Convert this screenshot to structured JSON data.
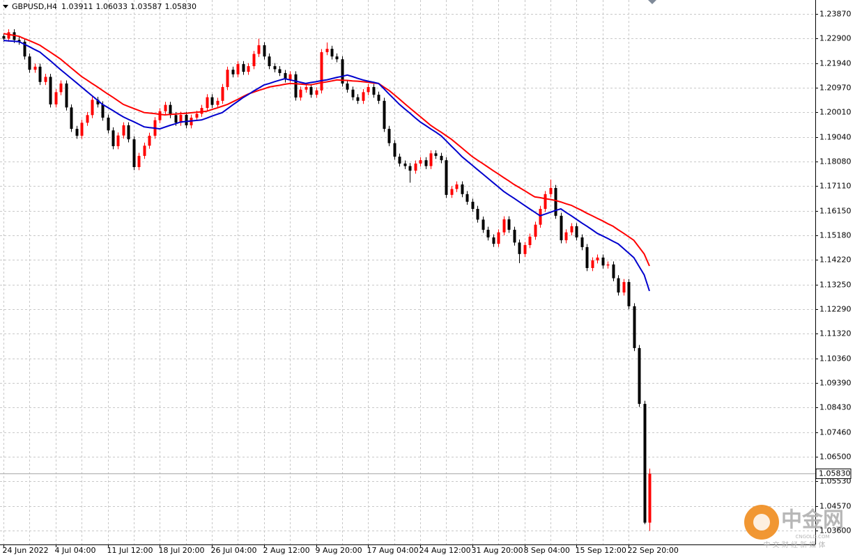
{
  "chart_data": {
    "type": "candlestick",
    "header": {
      "symbol": "GBPUSD,H4",
      "open": "1.03911",
      "high": "1.06033",
      "low": "1.03587",
      "close": "1.05830"
    },
    "categories": [
      "24 Jun 2022",
      null,
      null,
      null,
      null,
      null,
      null,
      null,
      null,
      null,
      "4 Jul 04:00",
      null,
      null,
      null,
      null,
      null,
      null,
      null,
      null,
      null,
      "11 Jul 12:00",
      null,
      null,
      null,
      null,
      null,
      null,
      null,
      null,
      null,
      "18 Jul 20:00",
      null,
      null,
      null,
      null,
      null,
      null,
      null,
      null,
      null,
      "26 Jul 04:00",
      null,
      null,
      null,
      null,
      null,
      null,
      null,
      null,
      null,
      "2 Aug 12:00",
      null,
      null,
      null,
      null,
      null,
      null,
      null,
      null,
      null,
      "9 Aug 20:00",
      null,
      null,
      null,
      null,
      null,
      null,
      null,
      null,
      null,
      "17 Aug 04:00",
      null,
      null,
      null,
      null,
      null,
      null,
      null,
      null,
      null,
      "24 Aug 12:00",
      null,
      null,
      null,
      null,
      null,
      null,
      null,
      null,
      null,
      "31 Aug 20:00",
      null,
      null,
      null,
      null,
      null,
      null,
      null,
      null,
      null,
      "8 Sep 04:00",
      null,
      null,
      null,
      null,
      null,
      null,
      null,
      null,
      null,
      "15 Sep 12:00",
      null,
      null,
      null,
      null,
      null,
      null,
      null,
      null,
      null,
      "22 Sep 20:00",
      null,
      null,
      null,
      null
    ],
    "open": [
      1.23,
      1.229,
      1.2315,
      1.2285,
      1.2278,
      1.222,
      1.2168,
      1.218,
      1.212,
      1.214,
      1.2032,
      1.208,
      1.2114,
      1.202,
      1.1936,
      1.1909,
      1.196,
      1.199,
      1.205,
      1.2032,
      1.198,
      1.193,
      1.1868,
      1.191,
      1.195,
      1.1895,
      1.1786,
      1.183,
      1.187,
      1.1909,
      1.197,
      1.2005,
      1.203,
      1.199,
      1.196,
      1.1991,
      1.195,
      1.198,
      1.1995,
      1.2018,
      1.206,
      1.203,
      1.2046,
      1.21,
      1.2168,
      1.215,
      1.219,
      1.216,
      1.2182,
      1.223,
      1.2264,
      1.222,
      1.2182,
      1.217,
      1.2155,
      1.213,
      1.215,
      1.2059,
      1.209,
      1.21,
      1.207,
      1.2087,
      1.2237,
      1.225,
      1.222,
      1.2209,
      1.2114,
      1.209,
      1.206,
      1.2046,
      1.208,
      1.21,
      1.207,
      1.2046,
      1.1936,
      1.188,
      1.1827,
      1.18,
      1.179,
      1.1772,
      1.18,
      1.1813,
      1.179,
      1.184,
      1.183,
      1.1813,
      1.1677,
      1.17,
      1.1718,
      1.168,
      1.165,
      1.1622,
      1.158,
      1.154,
      1.151,
      1.1485,
      1.153,
      1.1581,
      1.154,
      1.149,
      1.1445,
      1.148,
      1.1513,
      1.156,
      1.1622,
      1.168,
      1.1704,
      1.1595,
      1.1499,
      1.153,
      1.1554,
      1.151,
      1.1472,
      1.139,
      1.142,
      1.1431,
      1.14,
      1.1404,
      1.135,
      1.1294,
      1.1335,
      1.124,
      1.1076,
      1.0857,
      1.03911
    ],
    "high": [
      1.2312,
      1.2327,
      1.2327,
      1.2297,
      1.229,
      1.2232,
      1.2192,
      1.2192,
      1.2152,
      1.2152,
      1.2092,
      1.2126,
      1.2126,
      1.2032,
      1.1948,
      1.1972,
      1.2002,
      1.2062,
      1.2062,
      1.2044,
      1.1992,
      1.1942,
      1.1922,
      1.1962,
      1.1962,
      1.1907,
      1.1842,
      1.1882,
      1.1921,
      1.1982,
      1.2017,
      1.2042,
      1.2042,
      1.2002,
      1.2003,
      1.2003,
      1.1992,
      1.2007,
      1.203,
      1.2072,
      1.2072,
      1.2058,
      1.2112,
      1.218,
      1.218,
      1.2202,
      1.2202,
      1.2194,
      1.2242,
      1.229,
      1.2276,
      1.2232,
      1.2194,
      1.2182,
      1.2167,
      1.2162,
      1.2162,
      1.2102,
      1.2112,
      1.2112,
      1.2099,
      1.2249,
      1.2275,
      1.2262,
      1.2232,
      1.2221,
      1.2126,
      1.2102,
      1.2072,
      1.2092,
      1.2112,
      1.2112,
      1.2082,
      1.2058,
      1.1948,
      1.1892,
      1.1839,
      1.1812,
      1.1802,
      1.1812,
      1.1825,
      1.1825,
      1.1852,
      1.1852,
      1.1842,
      1.1825,
      1.1712,
      1.173,
      1.173,
      1.1692,
      1.1662,
      1.1634,
      1.1592,
      1.1552,
      1.1522,
      1.1542,
      1.1593,
      1.1593,
      1.1552,
      1.1502,
      1.1492,
      1.1525,
      1.1572,
      1.1634,
      1.1692,
      1.1737,
      1.1716,
      1.1607,
      1.1542,
      1.1566,
      1.1566,
      1.1522,
      1.1484,
      1.1432,
      1.1443,
      1.1443,
      1.1416,
      1.1416,
      1.1362,
      1.1347,
      1.1347,
      1.1252,
      1.1088,
      1.0869,
      1.06033
    ],
    "low": [
      1.2278,
      1.2278,
      1.2273,
      1.2266,
      1.2208,
      1.2156,
      1.2156,
      1.2108,
      1.2108,
      1.202,
      1.202,
      1.2068,
      1.2008,
      1.1924,
      1.1897,
      1.1897,
      1.1948,
      1.1978,
      1.202,
      1.1968,
      1.1918,
      1.1856,
      1.1856,
      1.1898,
      1.1883,
      1.1774,
      1.1774,
      1.1818,
      1.1858,
      1.1897,
      1.1958,
      1.1993,
      1.1978,
      1.1948,
      1.1948,
      1.1938,
      1.1938,
      1.1968,
      1.1983,
      1.2006,
      1.2018,
      1.2018,
      1.2034,
      1.2088,
      1.2138,
      1.2138,
      1.2148,
      1.2148,
      1.217,
      1.2218,
      1.2208,
      1.217,
      1.2158,
      1.2143,
      1.2118,
      1.2118,
      1.2047,
      1.2047,
      1.2078,
      1.2058,
      1.2058,
      1.2075,
      1.2225,
      1.2208,
      1.2197,
      1.2102,
      1.2078,
      1.2048,
      1.2034,
      1.2034,
      1.2068,
      1.2058,
      1.2034,
      1.1924,
      1.1868,
      1.1815,
      1.1788,
      1.1778,
      1.1725,
      1.176,
      1.1788,
      1.1778,
      1.1778,
      1.1818,
      1.1801,
      1.1665,
      1.1665,
      1.1688,
      1.1668,
      1.1638,
      1.161,
      1.1568,
      1.1528,
      1.1498,
      1.1473,
      1.1473,
      1.1518,
      1.1528,
      1.1478,
      1.1409,
      1.1433,
      1.1468,
      1.1501,
      1.1548,
      1.161,
      1.1668,
      1.1583,
      1.1487,
      1.1487,
      1.1518,
      1.1498,
      1.146,
      1.1378,
      1.1378,
      1.1408,
      1.1388,
      1.1388,
      1.1338,
      1.1282,
      1.1282,
      1.1228,
      1.1064,
      1.0845,
      1.0385,
      1.03587
    ],
    "close": [
      1.229,
      1.2315,
      1.2285,
      1.2278,
      1.222,
      1.2168,
      1.218,
      1.212,
      1.214,
      1.2032,
      1.208,
      1.2114,
      1.202,
      1.1936,
      1.1909,
      1.196,
      1.199,
      1.205,
      1.2032,
      1.198,
      1.193,
      1.1868,
      1.191,
      1.195,
      1.1895,
      1.1786,
      1.183,
      1.187,
      1.1909,
      1.197,
      1.2005,
      1.203,
      1.199,
      1.196,
      1.1991,
      1.195,
      1.198,
      1.1995,
      1.2018,
      1.206,
      1.203,
      1.2046,
      1.21,
      1.2168,
      1.215,
      1.219,
      1.216,
      1.2182,
      1.223,
      1.2264,
      1.222,
      1.2182,
      1.217,
      1.2155,
      1.213,
      1.215,
      1.2059,
      1.209,
      1.21,
      1.207,
      1.2087,
      1.2237,
      1.225,
      1.222,
      1.2209,
      1.2114,
      1.209,
      1.206,
      1.2046,
      1.208,
      1.21,
      1.207,
      1.2046,
      1.1936,
      1.188,
      1.1827,
      1.18,
      1.179,
      1.1772,
      1.18,
      1.1813,
      1.179,
      1.184,
      1.183,
      1.1813,
      1.1677,
      1.17,
      1.1718,
      1.168,
      1.165,
      1.1622,
      1.158,
      1.154,
      1.151,
      1.1485,
      1.153,
      1.1581,
      1.154,
      1.149,
      1.1445,
      1.148,
      1.1513,
      1.156,
      1.1622,
      1.168,
      1.1704,
      1.1595,
      1.1499,
      1.153,
      1.1554,
      1.151,
      1.1472,
      1.139,
      1.142,
      1.1431,
      1.14,
      1.1404,
      1.135,
      1.1294,
      1.1335,
      1.124,
      1.1076,
      1.0857,
      1.0391,
      1.0583
    ],
    "up_color": "#ff0000",
    "down_color": "#000000",
    "overlays": [
      {
        "color": "#ff0000",
        "values": [
          1.231,
          1.2306,
          1.2303,
          1.2299,
          1.229,
          1.2282,
          1.2273,
          1.2264,
          1.225,
          1.2237,
          1.2223,
          1.2209,
          1.2192,
          1.2175,
          1.2158,
          1.2141,
          1.2128,
          1.2114,
          1.2101,
          1.2087,
          1.2073,
          1.206,
          1.2046,
          1.2032,
          1.2024,
          1.2016,
          1.2008,
          1.2,
          1.1998,
          1.1996,
          1.1993,
          1.1991,
          1.1993,
          1.1994,
          1.1996,
          1.1997,
          1.1999,
          1.2001,
          1.2003,
          1.2005,
          1.2012,
          1.2018,
          1.2025,
          1.2032,
          1.2042,
          1.2052,
          1.2063,
          1.2073,
          1.208,
          1.2087,
          1.2093,
          1.21,
          1.2104,
          1.2107,
          1.2111,
          1.2114,
          1.2113,
          1.2112,
          1.211,
          1.2109,
          1.2113,
          1.2117,
          1.212,
          1.2124,
          1.2128,
          1.2127,
          1.2126,
          1.2124,
          1.2123,
          1.2121,
          1.2119,
          1.2116,
          1.2114,
          1.21,
          1.2087,
          1.207,
          1.2053,
          1.2035,
          1.2018,
          1.2001,
          1.1984,
          1.1967,
          1.195,
          1.1936,
          1.1923,
          1.1909,
          1.1895,
          1.1878,
          1.1861,
          1.1844,
          1.1827,
          1.1813,
          1.18,
          1.1786,
          1.1772,
          1.1759,
          1.1745,
          1.1732,
          1.1718,
          1.1706,
          1.1694,
          1.1681,
          1.1669,
          1.1666,
          1.1662,
          1.1659,
          1.1655,
          1.1649,
          1.1642,
          1.1636,
          1.1626,
          1.1616,
          1.1605,
          1.1595,
          1.1585,
          1.1575,
          1.1564,
          1.1554,
          1.154,
          1.1527,
          1.1513,
          1.1499,
          1.1472,
          1.1445,
          1.1398
        ]
      },
      {
        "color": "#0000cd",
        "values": [
          1.2283,
          1.2281,
          1.228,
          1.2278,
          1.2268,
          1.2258,
          1.2247,
          1.2237,
          1.222,
          1.2203,
          1.2185,
          1.2168,
          1.2151,
          1.2134,
          1.2117,
          1.21,
          1.2083,
          1.2066,
          1.2049,
          1.2032,
          1.202,
          1.2008,
          1.1995,
          1.1983,
          1.1973,
          1.1964,
          1.1954,
          1.1944,
          1.1941,
          1.1939,
          1.1936,
          1.1943,
          1.195,
          1.1956,
          1.1963,
          1.1965,
          1.1967,
          1.1969,
          1.1971,
          1.1978,
          1.1986,
          1.1993,
          1.2,
          1.2015,
          1.203,
          1.2044,
          1.2059,
          1.2071,
          1.2084,
          1.2096,
          1.2108,
          1.2114,
          1.2121,
          1.2127,
          1.2133,
          1.2128,
          1.2124,
          1.2119,
          1.2114,
          1.2118,
          1.2121,
          1.2125,
          1.2128,
          1.2133,
          1.2138,
          1.2142,
          1.2147,
          1.2141,
          1.2134,
          1.2128,
          1.2123,
          1.2119,
          1.2114,
          1.2094,
          1.2073,
          1.2053,
          1.2032,
          1.2015,
          1.1998,
          1.198,
          1.1963,
          1.195,
          1.1936,
          1.1923,
          1.1909,
          1.1889,
          1.1868,
          1.1848,
          1.1827,
          1.181,
          1.1793,
          1.1776,
          1.1759,
          1.1742,
          1.1725,
          1.1708,
          1.1691,
          1.1677,
          1.1664,
          1.165,
          1.1636,
          1.1622,
          1.1609,
          1.1595,
          1.1602,
          1.1609,
          1.1616,
          1.1622,
          1.1608,
          1.1595,
          1.1581,
          1.1567,
          1.1554,
          1.154,
          1.1526,
          1.1516,
          1.1506,
          1.1495,
          1.1485,
          1.1467,
          1.1449,
          1.1431,
          1.1397,
          1.1363,
          1.13
        ]
      }
    ],
    "last_price": {
      "value": 1.0583,
      "label": "1.05830"
    },
    "ylim": [
      1.03054,
      1.24416
    ],
    "yticks": [
      {
        "value": 1.2387,
        "label": "1.23870"
      },
      {
        "value": 1.229,
        "label": "1.22900"
      },
      {
        "value": 1.2194,
        "label": "1.21940"
      },
      {
        "value": 1.2097,
        "label": "1.20970"
      },
      {
        "value": 1.2001,
        "label": "1.20010"
      },
      {
        "value": 1.1904,
        "label": "1.19040"
      },
      {
        "value": 1.1808,
        "label": "1.18080"
      },
      {
        "value": 1.1711,
        "label": "1.17110"
      },
      {
        "value": 1.1615,
        "label": "1.16150"
      },
      {
        "value": 1.1518,
        "label": "1.15180"
      },
      {
        "value": 1.1422,
        "label": "1.14220"
      },
      {
        "value": 1.1325,
        "label": "1.13250"
      },
      {
        "value": 1.1229,
        "label": "1.12290"
      },
      {
        "value": 1.1132,
        "label": "1.11320"
      },
      {
        "value": 1.1036,
        "label": "1.10360"
      },
      {
        "value": 1.0939,
        "label": "1.09390"
      },
      {
        "value": 1.0843,
        "label": "1.08430"
      },
      {
        "value": 1.0746,
        "label": "1.07460"
      },
      {
        "value": 1.065,
        "label": "1.06500"
      },
      {
        "value": 1.0553,
        "label": "1.05530"
      },
      {
        "value": 1.0457,
        "label": "1.04570"
      },
      {
        "value": 1.036,
        "label": "1.03600"
      }
    ],
    "grid": true,
    "watermark": {
      "brand": "中金网",
      "domain": "CNGOLD.COM",
      "slogan": "中 文 财 经 新 媒 体"
    }
  }
}
